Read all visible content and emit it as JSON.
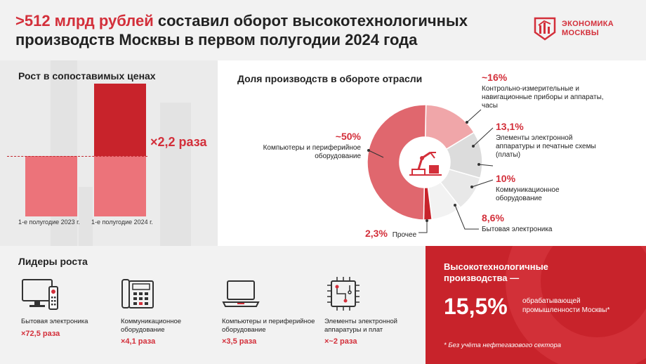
{
  "header": {
    "title_accent": ">512 млрд рублей",
    "title_rest": " составил оборот высокотехнологичных производств Москвы в первом полугодии 2024 года",
    "logo_line1": "ЭКОНОМИКА",
    "logo_line2": "МОСКВЫ"
  },
  "growth": {
    "title": "Рост в сопоставимых ценах",
    "multiplier": "×2,2 раза",
    "colors": {
      "bar_2023": "#ec737a",
      "bar_2024": "#c8232b",
      "bar_2024_lower": "#ec737a"
    }
  },
  "share": {
    "title": "Доля производств в обороте отрасли",
    "annotations": {
      "computers": {
        "pct": "~50%",
        "text": "Компьютеры и периферийное оборудование"
      },
      "instruments": {
        "pct": "~16%",
        "text": "Контрольно-измерительные и навигационные приборы и аппараты, часы"
      },
      "electronics": {
        "pct": "13,1%",
        "text": "Элементы электронной аппаратуры и печатные схемы (платы)"
      },
      "communication": {
        "pct": "10%",
        "text": "Коммуникационное оборудование"
      },
      "household": {
        "pct": "8,6%",
        "text": "Бытовая электроника"
      },
      "other": {
        "pct": "2,3%",
        "text": "Прочее"
      }
    }
  },
  "chart_data": [
    {
      "type": "bar",
      "title": "Рост в сопоставимых ценах",
      "categories": [
        "1-е полугодие 2023 г.",
        "1-е полугодие 2024 г."
      ],
      "values": [
        1,
        2.2
      ],
      "annotation": "×2,2 раза"
    },
    {
      "type": "pie",
      "title": "Доля производств в обороте отрасли",
      "slices": [
        {
          "label": "Компьютеры и периферийное оборудование",
          "value": 50,
          "display": "~50%",
          "color": "#e0676e"
        },
        {
          "label": "Контрольно-измерительные и навигационные приборы и аппараты, часы",
          "value": 16,
          "display": "~16%",
          "color": "#f0a6a9"
        },
        {
          "label": "Элементы электронной аппаратуры и печатные схемы (платы)",
          "value": 13.1,
          "display": "13,1%",
          "color": "#dcdcdc"
        },
        {
          "label": "Коммуникационное оборудование",
          "value": 10,
          "display": "10%",
          "color": "#e8e8e8"
        },
        {
          "label": "Бытовая электроника",
          "value": 8.6,
          "display": "8,6%",
          "color": "#f2f2f2"
        },
        {
          "label": "Прочее",
          "value": 2.3,
          "display": "2,3%",
          "color": "#c8232b"
        }
      ]
    }
  ],
  "leaders": {
    "title": "Лидеры роста",
    "items": [
      {
        "name": "Бытовая электроника",
        "value": "×72,5 раза",
        "icon": "tv-icon"
      },
      {
        "name": "Коммуникационное оборудование",
        "value": "×4,1 раза",
        "icon": "phone-icon"
      },
      {
        "name": "Компьютеры и периферийное оборудование",
        "value": "×3,5 раза",
        "icon": "laptop-icon"
      },
      {
        "name": "Элементы электронной аппаратуры и плат",
        "value": "×~2 раза",
        "icon": "chip-icon"
      }
    ]
  },
  "summary": {
    "heading": "Высокотехнологичные производства —",
    "value": "15,5%",
    "desc": "обрабатывающей промышленности Москвы*",
    "note": "* Без учёта нефтегазового сектора"
  }
}
